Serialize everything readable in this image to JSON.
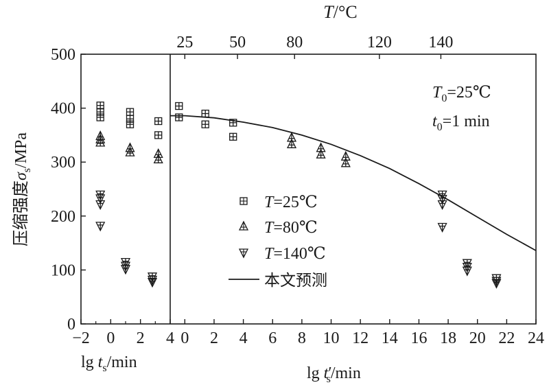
{
  "chart_data": {
    "type": "scatter",
    "ylabel_cn": "压缩强度",
    "ylabel_sym": "σ",
    "ylabel_sub": "s",
    "ylabel_unit": "/MPa",
    "ylim": [
      0,
      500
    ],
    "yticks": [
      "0",
      "100",
      "200",
      "300",
      "400",
      "500"
    ],
    "left_panel": {
      "xlabel_main": "lg ",
      "xlabel_sym": "t",
      "xlabel_sub": "s",
      "xlabel_unit": "/min",
      "xlim": [
        -2,
        4
      ],
      "xticks": [
        "−2",
        "0",
        "2",
        "4"
      ]
    },
    "right_panel": {
      "xlabel_main": "lg ",
      "xlabel_sym": "t",
      "xlabel_prime": "′",
      "xlabel_sub": "s",
      "xlabel_unit": "/min",
      "xlim": [
        -1,
        24
      ],
      "xticks": [
        "0",
        "2",
        "4",
        "6",
        "8",
        "10",
        "12",
        "14",
        "16",
        "18",
        "20",
        "22",
        "24"
      ]
    },
    "top_axis": {
      "label_sym": "T",
      "label_unit": "/°C",
      "ticks": [
        {
          "label": "25",
          "x": 0
        },
        {
          "label": "50",
          "x": 3.6
        },
        {
          "label": "80",
          "x": 7.5
        },
        {
          "label": "120",
          "x": 13.3
        },
        {
          "label": "140",
          "x": 17.5
        }
      ]
    },
    "annotation": {
      "T0_sym": "T",
      "T0_sub": "0",
      "T0_val": "=25℃",
      "t0_sym": "t",
      "t0_sub": "0",
      "t0_val": "=1 min"
    },
    "legend": {
      "position": "center",
      "entries": [
        {
          "sym": "T",
          "text": "=25℃",
          "marker": "square-plus"
        },
        {
          "sym": "T",
          "text": "=80℃",
          "marker": "triangle-up"
        },
        {
          "sym": "T",
          "text": "=140℃",
          "marker": "triangle-down"
        },
        {
          "sym": "",
          "text": "本文预测",
          "marker": "line"
        }
      ]
    },
    "series": [
      {
        "name": "T=25℃",
        "marker": "square-plus",
        "left": [
          [
            -0.7,
            405
          ],
          [
            -0.7,
            393
          ],
          [
            -0.7,
            383
          ],
          [
            1.3,
            393
          ],
          [
            1.3,
            380
          ],
          [
            1.3,
            370
          ],
          [
            3.2,
            376
          ],
          [
            3.2,
            350
          ]
        ],
        "right": [
          [
            -0.4,
            404
          ],
          [
            -0.4,
            383
          ],
          [
            1.4,
            390
          ],
          [
            1.4,
            370
          ],
          [
            3.3,
            373
          ],
          [
            3.3,
            347
          ]
        ]
      },
      {
        "name": "T=80℃",
        "marker": "triangle-up",
        "left": [
          [
            -0.7,
            348
          ],
          [
            -0.7,
            342
          ],
          [
            -0.7,
            336
          ],
          [
            1.3,
            326
          ],
          [
            1.3,
            318
          ],
          [
            3.2,
            315
          ],
          [
            3.2,
            305
          ]
        ],
        "right": [
          [
            7.3,
            345
          ],
          [
            7.3,
            333
          ],
          [
            9.3,
            326
          ],
          [
            9.3,
            314
          ],
          [
            11.0,
            310
          ],
          [
            11.0,
            298
          ]
        ]
      },
      {
        "name": "T=140℃",
        "marker": "triangle-down",
        "left": [
          [
            -0.7,
            240
          ],
          [
            -0.7,
            233
          ],
          [
            -0.7,
            222
          ],
          [
            -0.7,
            182
          ],
          [
            1.0,
            115
          ],
          [
            1.0,
            108
          ],
          [
            1.0,
            102
          ],
          [
            2.8,
            88
          ],
          [
            2.8,
            82
          ],
          [
            2.8,
            78
          ]
        ],
        "right": [
          [
            17.6,
            240
          ],
          [
            17.6,
            232
          ],
          [
            17.6,
            222
          ],
          [
            17.6,
            180
          ],
          [
            19.3,
            113
          ],
          [
            19.3,
            106
          ],
          [
            19.3,
            99
          ],
          [
            21.3,
            85
          ],
          [
            21.3,
            80
          ],
          [
            21.3,
            76
          ]
        ]
      }
    ],
    "prediction_curve": {
      "name": "本文预测",
      "x": [
        -1,
        0,
        2,
        4,
        6,
        8,
        10,
        12,
        14,
        16,
        18,
        20,
        22,
        24
      ],
      "y": [
        386,
        386,
        382,
        374,
        364,
        350,
        333,
        312,
        288,
        260,
        230,
        198,
        166,
        136
      ]
    }
  }
}
